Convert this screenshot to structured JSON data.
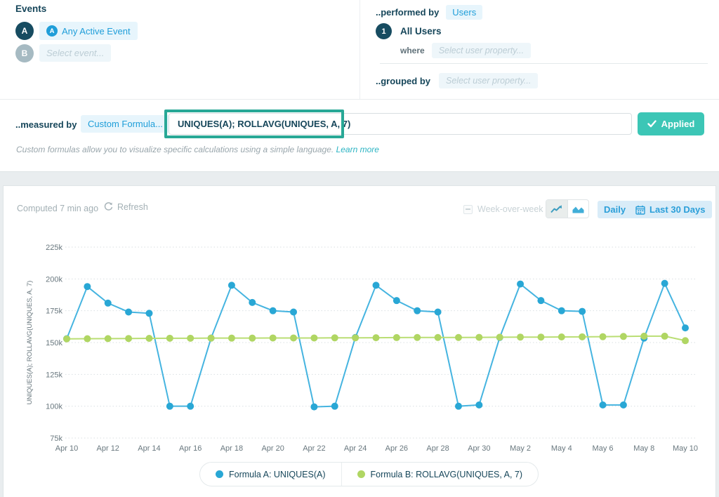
{
  "colors": {
    "navy": "#16465a",
    "blue_accent": "#1f9ed9",
    "blue_line": "#45b4e0",
    "blue_dot": "#29a7d5",
    "green_line": "#bade74",
    "green_dot": "#b0d663",
    "teal_button": "#3cc6b6",
    "teal_annotation": "#28a896",
    "light_blue_pill": "#e7f5fc",
    "axis_text": "#68777e",
    "grid": "#d9dfe2"
  },
  "events_panel": {
    "title": "Events",
    "rows": [
      {
        "badge": "A",
        "icon": "any-active-event",
        "label": "Any Active Event"
      },
      {
        "badge": "B",
        "label": "Select event..."
      }
    ]
  },
  "performed_by": {
    "label": "..performed by",
    "value": "Users",
    "segment_badge": "1",
    "segment_label": "All Users",
    "where_label": "where",
    "where_placeholder": "Select user property...",
    "grouped_by_label": "..grouped by",
    "grouped_by_placeholder": "Select user property..."
  },
  "measured_by": {
    "label": "..measured by",
    "selector": "Custom Formula...",
    "formula_value": "UNIQUES(A); ROLLAVG(UNIQUES, A, 7)",
    "applied_label": "Applied",
    "helper_text": "Custom formulas allow you to visualize specific calculations using a simple language.",
    "learn_more_label": "Learn more"
  },
  "chart_header": {
    "computed_text": "Computed 7 min ago",
    "refresh_label": "Refresh",
    "week_over_week_label": "Week-over-week",
    "interval_label": "Daily",
    "date_range_label": "Last 30 Days"
  },
  "chart_data": {
    "type": "line",
    "ylabel": "UNIQUES(A); ROLLAVG(UNIQUES, A, 7)",
    "xlabel": "",
    "grid": "horizontal-dotted",
    "legend_position": "bottom",
    "ylim": [
      75000,
      225000
    ],
    "yticks": [
      75000,
      100000,
      125000,
      150000,
      175000,
      200000,
      225000
    ],
    "ytick_labels": [
      "75k",
      "100k",
      "125k",
      "150k",
      "175k",
      "200k",
      "225k"
    ],
    "xtick_every": 2,
    "x": [
      "Apr 10",
      "Apr 11",
      "Apr 12",
      "Apr 13",
      "Apr 14",
      "Apr 15",
      "Apr 16",
      "Apr 17",
      "Apr 18",
      "Apr 19",
      "Apr 20",
      "Apr 21",
      "Apr 22",
      "Apr 23",
      "Apr 24",
      "Apr 25",
      "Apr 26",
      "Apr 27",
      "Apr 28",
      "Apr 29",
      "Apr 30",
      "May 1",
      "May 2",
      "May 3",
      "May 4",
      "May 5",
      "May 6",
      "May 7",
      "May 8",
      "May 9",
      "May 10"
    ],
    "series": [
      {
        "name": "Formula A: UNIQUES(A)",
        "line_color": "#45b4e0",
        "dot_color": "#29a7d5",
        "values": [
          153000,
          194000,
          181000,
          174000,
          173000,
          100000,
          100000,
          153500,
          195000,
          181500,
          175000,
          174000,
          99500,
          100000,
          154000,
          195000,
          183000,
          175000,
          174000,
          100000,
          101000,
          154000,
          196000,
          183000,
          175000,
          174500,
          101000,
          101000,
          153500,
          196500,
          161500
        ]
      },
      {
        "name": "Formula B: ROLLAVG(UNIQUES, A, 7)",
        "line_color": "#bade74",
        "dot_color": "#b0d663",
        "values": [
          152900,
          153000,
          153100,
          153200,
          153300,
          153400,
          153400,
          153500,
          153500,
          153500,
          153600,
          153600,
          153600,
          153700,
          153700,
          153800,
          153900,
          154000,
          154000,
          154000,
          154100,
          154200,
          154300,
          154300,
          154400,
          154500,
          154600,
          154800,
          155000,
          155000,
          151500
        ]
      }
    ]
  }
}
